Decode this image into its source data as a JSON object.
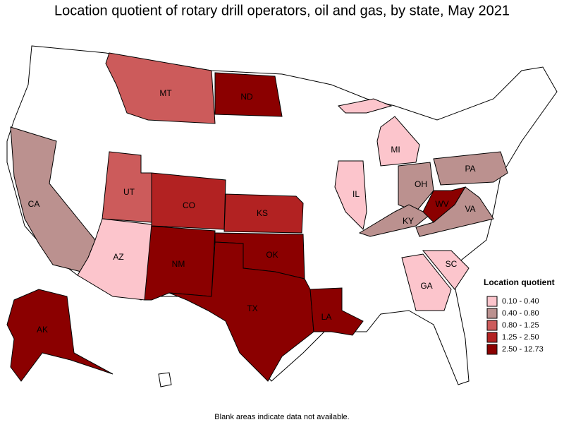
{
  "title": "Location quotient of rotary drill operators, oil and gas, by state, May 2021",
  "legend": {
    "title": "Location quotient",
    "items": [
      {
        "label": "0.10 - 0.40",
        "color": "#fcc5cc"
      },
      {
        "label": "0.40 - 0.80",
        "color": "#bb918f"
      },
      {
        "label": "0.80 - 1.25",
        "color": "#cc5b5b"
      },
      {
        "label": "1.25 - 2.50",
        "color": "#b22222"
      },
      {
        "label": "2.50 - 12.73",
        "color": "#8b0000"
      }
    ]
  },
  "states": [
    {
      "label": "MT",
      "color": "#cc5b5b"
    },
    {
      "label": "ND",
      "color": "#8b0000"
    },
    {
      "label": "UT",
      "color": "#cc5b5b"
    },
    {
      "label": "CO",
      "color": "#b22222"
    },
    {
      "label": "KS",
      "color": "#b22222"
    },
    {
      "label": "NM",
      "color": "#8b0000"
    },
    {
      "label": "OK",
      "color": "#8b0000"
    },
    {
      "label": "TX",
      "color": "#8b0000"
    },
    {
      "label": "LA",
      "color": "#8b0000"
    },
    {
      "label": "AK",
      "color": "#8b0000"
    },
    {
      "label": "CA",
      "color": "#bb918f"
    },
    {
      "label": "AZ",
      "color": "#fcc5cc"
    },
    {
      "label": "MI",
      "color": "#fcc5cc"
    },
    {
      "label": "IL",
      "color": "#fcc5cc"
    },
    {
      "label": "OH",
      "color": "#bb918f"
    },
    {
      "label": "PA",
      "color": "#bb918f"
    },
    {
      "label": "KY",
      "color": "#bb918f"
    },
    {
      "label": "WV",
      "color": "#8b0000"
    },
    {
      "label": "VA",
      "color": "#bb918f"
    },
    {
      "label": "GA",
      "color": "#fcc5cc"
    },
    {
      "label": "SC",
      "color": "#fcc5cc"
    }
  ],
  "note": "Blank areas indicate data not available."
}
